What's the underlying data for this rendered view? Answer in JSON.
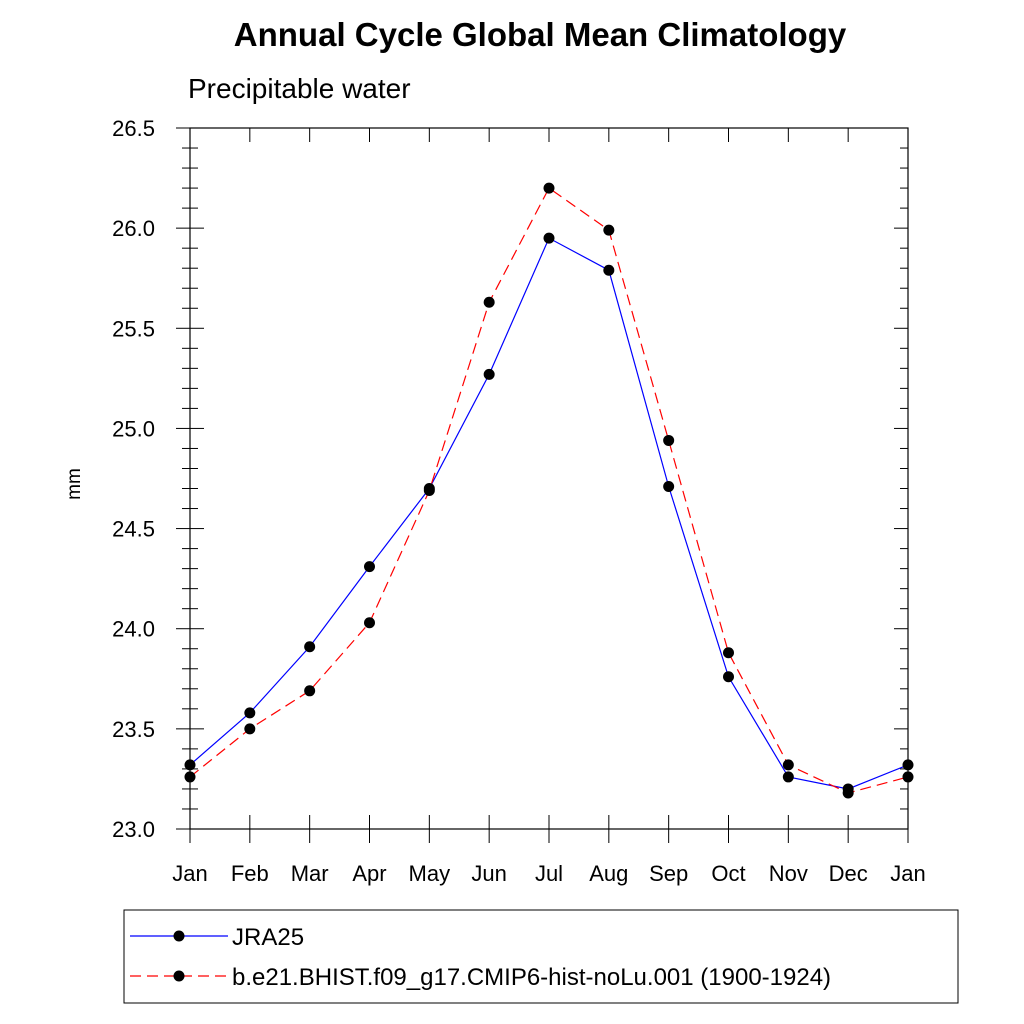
{
  "chart_data": {
    "type": "line",
    "title": "Annual Cycle Global Mean Climatology",
    "subtitle": "Precipitable water",
    "xlabel": "",
    "ylabel": "mm",
    "categories": [
      "Jan",
      "Feb",
      "Mar",
      "Apr",
      "May",
      "Jun",
      "Jul",
      "Aug",
      "Sep",
      "Oct",
      "Nov",
      "Dec",
      "Jan"
    ],
    "ylim": [
      23.0,
      26.5
    ],
    "yticks": [
      "23.0",
      "23.5",
      "24.0",
      "24.5",
      "25.0",
      "25.5",
      "26.0",
      "26.5"
    ],
    "grid": false,
    "legend_position": "bottom",
    "series": [
      {
        "name": "JRA25",
        "color": "#0000ff",
        "style": "solid",
        "marker": "filled-circle",
        "values": [
          23.32,
          23.58,
          23.91,
          24.31,
          24.7,
          25.27,
          25.95,
          25.79,
          24.71,
          23.76,
          23.26,
          23.2,
          23.32
        ]
      },
      {
        "name": "b.e21.BHIST.f09_g17.CMIP6-hist-noLu.001 (1900-1924)",
        "color": "#ff0000",
        "style": "dashed",
        "marker": "filled-circle",
        "values": [
          23.26,
          23.5,
          23.69,
          24.03,
          24.69,
          25.63,
          26.2,
          25.99,
          24.94,
          23.88,
          23.32,
          23.18,
          23.26
        ]
      }
    ]
  }
}
